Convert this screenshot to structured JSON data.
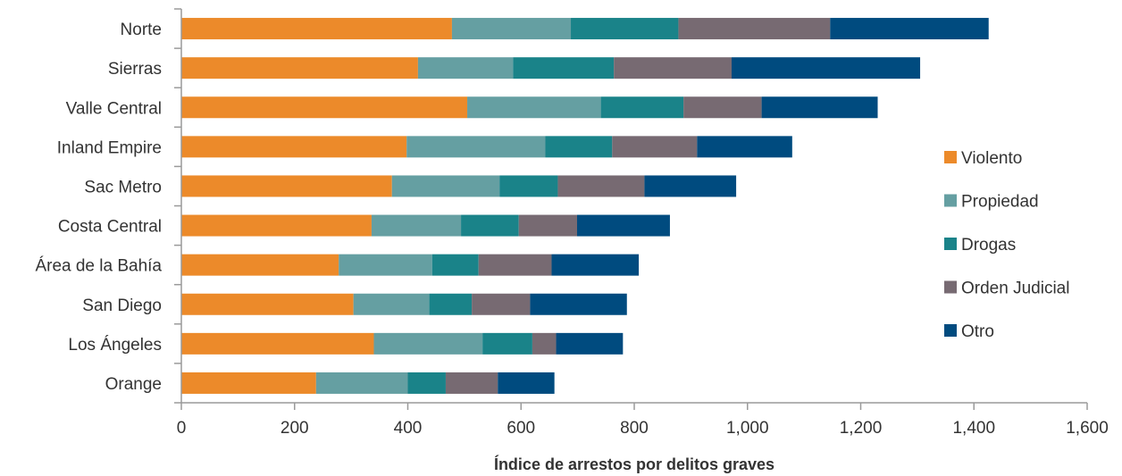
{
  "chart_data": {
    "type": "bar",
    "orientation": "horizontal",
    "stacked": true,
    "categories": [
      "Norte",
      "Sierras",
      "Valle Central",
      "Inland Empire",
      "Sac Metro",
      "Costa Central",
      "Área de la Bahía",
      "San Diego",
      "Los Ángeles",
      "Orange"
    ],
    "series": [
      {
        "name": "Violento",
        "color": "#ec8a2a",
        "values": [
          478,
          418,
          505,
          398,
          372,
          336,
          278,
          304,
          340,
          238
        ]
      },
      {
        "name": "Propiedad",
        "color": "#659fa2",
        "values": [
          210,
          168,
          236,
          245,
          190,
          158,
          165,
          134,
          192,
          162
        ]
      },
      {
        "name": "Drogas",
        "color": "#1a8389",
        "values": [
          190,
          178,
          146,
          118,
          103,
          102,
          82,
          75,
          88,
          67
        ]
      },
      {
        "name": "Orden Judicial",
        "color": "#776a72",
        "values": [
          268,
          208,
          138,
          150,
          153,
          103,
          129,
          103,
          42,
          92
        ]
      },
      {
        "name": "Otro",
        "color": "#004b7f",
        "values": [
          280,
          333,
          205,
          168,
          162,
          164,
          154,
          171,
          118,
          100
        ]
      }
    ],
    "xlabel": "Índice de arrestos por delitos graves",
    "ylabel": "",
    "xlim": [
      0,
      1600
    ],
    "x_ticks": [
      0,
      200,
      400,
      600,
      800,
      1000,
      1200,
      1400,
      1600
    ],
    "x_tick_labels": [
      "0",
      "200",
      "400",
      "600",
      "800",
      "1,000",
      "1,200",
      "1,400",
      "1,600"
    ],
    "grid": false,
    "legend_position": "right"
  }
}
